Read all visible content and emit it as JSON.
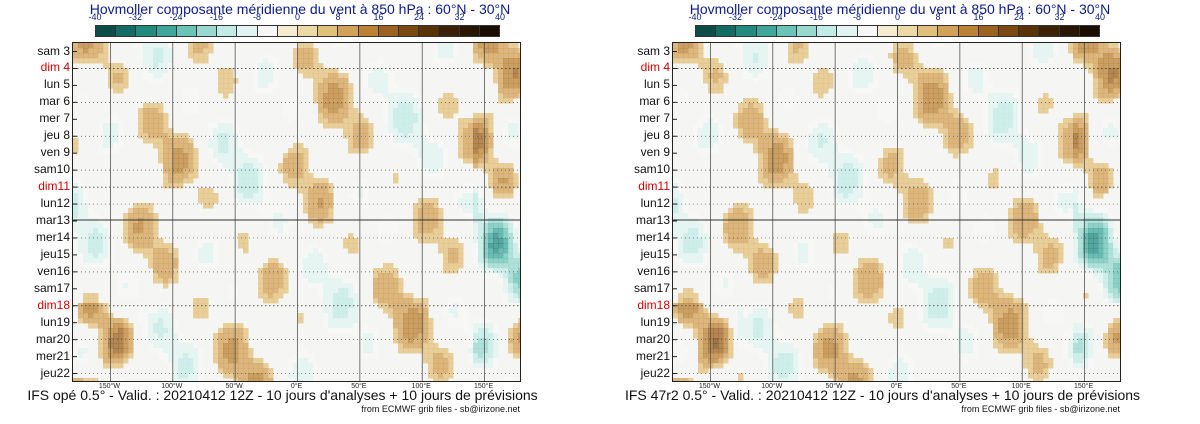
{
  "colorbar": {
    "ticks": [
      "-40",
      "-32",
      "-24",
      "-16",
      "-8",
      "0",
      "8",
      "16",
      "24",
      "32",
      "40"
    ],
    "colors": [
      "#0b4d47",
      "#146b63",
      "#238a80",
      "#3fa69b",
      "#6bc2b7",
      "#98d8cf",
      "#c3ebe5",
      "#e1f4f1",
      "#f7f7f7",
      "#f5ebcf",
      "#ecd9a6",
      "#e1c07c",
      "#d2a258",
      "#bb8236",
      "#9b6220",
      "#7a4a12",
      "#5a3208",
      "#3d2106",
      "#2a1604",
      "#1a0d02"
    ]
  },
  "panels": [
    {
      "title": "Hovmoller composante méridienne du vent à 850 hPa : 60°N - 30°N",
      "footer": "IFS opé 0.5° - Valid. : 20210412 12Z - 10 jours d'analyses + 10 jours de prévisions",
      "credit": "from ECMWF grib files - sb@irizone.net"
    },
    {
      "title": "Hovmoller composante méridienne du vent à 850 hPa : 60°N - 30°N",
      "footer": "IFS 47r2 0.5° - Valid. : 20210412 12Z - 10 jours d'analyses + 10 jours de prévisions",
      "credit": "from ECMWF grib files - sb@irizone.net"
    }
  ],
  "chart_data": [
    {
      "type": "heatmap",
      "title": "Hovmoller composante méridienne du vent à 850 hPa : 60°N - 30°N",
      "y_categories": [
        "sam 3",
        "dim 4",
        "lun 5",
        "mar 6",
        "mer 7",
        "jeu 8",
        "ven 9",
        "sam10",
        "dim11",
        "lun12",
        "mar13",
        "mer14",
        "jeu15",
        "ven16",
        "sam17",
        "dim18",
        "lun19",
        "mar20",
        "mer21",
        "jeu22"
      ],
      "sunday_rows": [
        "dim 4",
        "dim11",
        "dim18"
      ],
      "x_ticks": [
        "150°W",
        "100°W",
        "50°W",
        "0°E",
        "50°E",
        "100°E",
        "150°E"
      ],
      "x_tick_values": [
        -150,
        -100,
        -50,
        0,
        50,
        100,
        150
      ],
      "xlim": [
        -180,
        180
      ],
      "colorbar_range": [
        -40,
        40
      ],
      "analysis_forecast_boundary": "mar13",
      "grid": true
    },
    {
      "type": "heatmap",
      "title": "Hovmoller composante méridienne du vent à 850 hPa : 60°N - 30°N",
      "y_categories": [
        "sam 3",
        "dim 4",
        "lun 5",
        "mar 6",
        "mer 7",
        "jeu 8",
        "ven 9",
        "sam10",
        "dim11",
        "lun12",
        "mar13",
        "mer14",
        "jeu15",
        "ven16",
        "sam17",
        "dim18",
        "lun19",
        "mar20",
        "mer21",
        "jeu22"
      ],
      "sunday_rows": [
        "dim 4",
        "dim11",
        "dim18"
      ],
      "x_ticks": [
        "150°W",
        "100°W",
        "50°W",
        "0°E",
        "50°E",
        "100°E",
        "150°E"
      ],
      "x_tick_values": [
        -150,
        -100,
        -50,
        0,
        50,
        100,
        150
      ],
      "xlim": [
        -180,
        180
      ],
      "colorbar_range": [
        -40,
        40
      ],
      "analysis_forecast_boundary": "mar13",
      "grid": true
    }
  ]
}
